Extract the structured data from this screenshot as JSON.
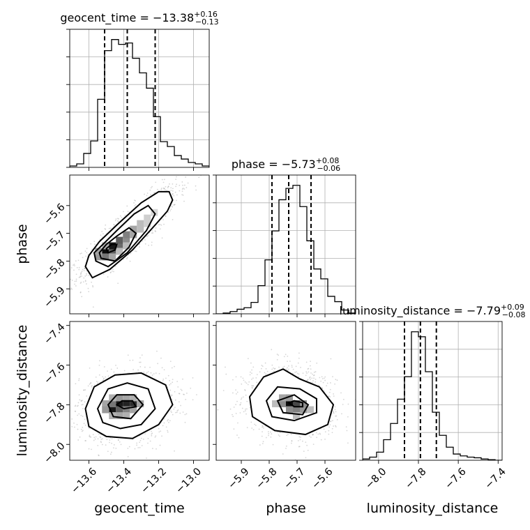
{
  "chart_data": {
    "type": "corner",
    "parameters": [
      {
        "key": "geocent_time",
        "label": "geocent_time",
        "title": {
          "name": "geocent_time",
          "median": "−13.38",
          "plus": "+0.16",
          "minus": "−0.13"
        },
        "range": [
          -13.71,
          -12.91
        ],
        "ticks": [
          -13.6,
          -13.4,
          -13.2,
          -13.0
        ],
        "tick_labels": [
          "−13.6",
          "−13.4",
          "−13.2",
          "−13.0"
        ],
        "quantiles": [
          -13.51,
          -13.38,
          -13.22
        ],
        "hist": {
          "edges": [
            -13.71,
            -13.67,
            -13.63,
            -13.59,
            -13.55,
            -13.51,
            -13.47,
            -13.43,
            -13.39,
            -13.35,
            -13.31,
            -13.27,
            -13.23,
            -13.19,
            -13.15,
            -13.11,
            -13.07,
            -13.03,
            -12.99,
            -12.95,
            -12.91
          ],
          "counts": [
            2,
            5,
            20,
            38,
            98,
            168,
            184,
            177,
            179,
            157,
            136,
            114,
            73,
            37,
            30,
            17,
            12,
            7,
            5,
            2
          ]
        }
      },
      {
        "key": "phase",
        "label": "phase",
        "title": {
          "name": "phase",
          "median": "−5.73",
          "plus": "+0.08",
          "minus": "−0.06"
        },
        "range": [
          -5.99,
          -5.49
        ],
        "ticks": [
          -5.9,
          -5.8,
          -5.7,
          -5.6
        ],
        "tick_labels": [
          "−5.9",
          "−5.8",
          "−5.7",
          "−5.6"
        ],
        "quantiles": [
          -5.79,
          -5.73,
          -5.65
        ],
        "hist": {
          "edges": [
            -5.99,
            -5.965,
            -5.94,
            -5.915,
            -5.89,
            -5.865,
            -5.84,
            -5.815,
            -5.79,
            -5.765,
            -5.74,
            -5.715,
            -5.69,
            -5.665,
            -5.64,
            -5.615,
            -5.59,
            -5.565,
            -5.54,
            -5.515,
            -5.49
          ],
          "counts": [
            0,
            1,
            3,
            6,
            8,
            15,
            37,
            71,
            109,
            150,
            165,
            169,
            141,
            96,
            59,
            46,
            23,
            16,
            5,
            1
          ]
        }
      },
      {
        "key": "luminosity_distance",
        "label": "luminosity_distance",
        "title": {
          "name": "luminosity_distance",
          "median": "−7.79",
          "plus": "+0.09",
          "minus": "−0.08"
        },
        "range": [
          -8.08,
          -7.38
        ],
        "ticks": [
          -8.0,
          -7.8,
          -7.6,
          -7.4
        ],
        "tick_labels": [
          "−8.0",
          "−7.8",
          "−7.6",
          "−7.4"
        ],
        "quantiles": [
          -7.87,
          -7.79,
          -7.71
        ],
        "hist": {
          "edges": [
            -8.08,
            -8.045,
            -8.01,
            -7.975,
            -7.94,
            -7.905,
            -7.87,
            -7.835,
            -7.8,
            -7.765,
            -7.73,
            -7.695,
            -7.66,
            -7.625,
            -7.59,
            -7.555,
            -7.52,
            -7.485,
            -7.45,
            -7.415,
            -7.38
          ],
          "counts": [
            2,
            5,
            13,
            33,
            59,
            98,
            134,
            206,
            198,
            142,
            77,
            40,
            21,
            10,
            7,
            5,
            4,
            2,
            1,
            0
          ]
        }
      }
    ],
    "pairs": [
      {
        "x": "geocent_time",
        "y": "phase",
        "contours": [
          [
            [
              -13.62,
              -5.82
            ],
            [
              -13.58,
              -5.86
            ],
            [
              -13.48,
              -5.83
            ],
            [
              -13.35,
              -5.76
            ],
            [
              -13.22,
              -5.67
            ],
            [
              -13.15,
              -5.62
            ],
            [
              -13.12,
              -5.58
            ],
            [
              -13.14,
              -5.55
            ],
            [
              -13.2,
              -5.55
            ],
            [
              -13.3,
              -5.59
            ],
            [
              -13.44,
              -5.67
            ],
            [
              -13.54,
              -5.73
            ],
            [
              -13.6,
              -5.78
            ]
          ],
          [
            [
              -13.56,
              -5.8
            ],
            [
              -13.49,
              -5.82
            ],
            [
              -13.38,
              -5.77
            ],
            [
              -13.27,
              -5.69
            ],
            [
              -13.22,
              -5.63
            ],
            [
              -13.26,
              -5.6
            ],
            [
              -13.34,
              -5.63
            ],
            [
              -13.44,
              -5.69
            ],
            [
              -13.52,
              -5.74
            ],
            [
              -13.57,
              -5.77
            ]
          ],
          [
            [
              -13.53,
              -5.79
            ],
            [
              -13.45,
              -5.8
            ],
            [
              -13.37,
              -5.75
            ],
            [
              -13.33,
              -5.7
            ],
            [
              -13.37,
              -5.68
            ],
            [
              -13.44,
              -5.71
            ],
            [
              -13.5,
              -5.74
            ],
            [
              -13.54,
              -5.77
            ]
          ],
          [
            [
              -13.49,
              -5.77
            ],
            [
              -13.45,
              -5.76
            ],
            [
              -13.44,
              -5.74
            ],
            [
              -13.47,
              -5.74
            ],
            [
              -13.5,
              -5.755
            ]
          ]
        ],
        "density_cells": [
          {
            "x": -13.505,
            "y": -5.765,
            "v": 0.95
          },
          {
            "x": -13.465,
            "y": -5.765,
            "v": 0.6
          },
          {
            "x": -13.465,
            "y": -5.745,
            "v": 0.9
          },
          {
            "x": -13.425,
            "y": -5.745,
            "v": 0.55
          },
          {
            "x": -13.425,
            "y": -5.725,
            "v": 0.6
          },
          {
            "x": -13.385,
            "y": -5.725,
            "v": 0.4
          },
          {
            "x": -13.385,
            "y": -5.705,
            "v": 0.45
          },
          {
            "x": -13.345,
            "y": -5.705,
            "v": 0.3
          },
          {
            "x": -13.345,
            "y": -5.685,
            "v": 0.3
          },
          {
            "x": -13.305,
            "y": -5.685,
            "v": 0.2
          },
          {
            "x": -13.305,
            "y": -5.665,
            "v": 0.2
          },
          {
            "x": -13.265,
            "y": -5.665,
            "v": 0.12
          },
          {
            "x": -13.265,
            "y": -5.645,
            "v": 0.12
          },
          {
            "x": -13.225,
            "y": -5.625,
            "v": 0.08
          },
          {
            "x": -13.545,
            "y": -5.785,
            "v": 0.35
          },
          {
            "x": -13.505,
            "y": -5.785,
            "v": 0.5
          },
          {
            "x": -13.465,
            "y": -5.785,
            "v": 0.3
          },
          {
            "x": -13.545,
            "y": -5.765,
            "v": 0.3
          },
          {
            "x": -13.425,
            "y": -5.765,
            "v": 0.2
          },
          {
            "x": -13.385,
            "y": -5.745,
            "v": 0.2
          },
          {
            "x": -13.505,
            "y": -5.745,
            "v": 0.25
          }
        ]
      },
      {
        "x": "geocent_time",
        "y": "luminosity_distance",
        "contours": [
          [
            [
              -13.62,
              -7.82
            ],
            [
              -13.6,
              -7.91
            ],
            [
              -13.5,
              -7.96
            ],
            [
              -13.35,
              -7.97
            ],
            [
              -13.2,
              -7.9
            ],
            [
              -13.12,
              -7.8
            ],
            [
              -13.16,
              -7.7
            ],
            [
              -13.3,
              -7.64
            ],
            [
              -13.45,
              -7.65
            ],
            [
              -13.57,
              -7.71
            ]
          ],
          [
            [
              -13.55,
              -7.82
            ],
            [
              -13.52,
              -7.89
            ],
            [
              -13.42,
              -7.92
            ],
            [
              -13.3,
              -7.9
            ],
            [
              -13.22,
              -7.82
            ],
            [
              -13.26,
              -7.72
            ],
            [
              -13.38,
              -7.69
            ],
            [
              -13.49,
              -7.72
            ]
          ],
          [
            [
              -13.49,
              -7.8
            ],
            [
              -13.46,
              -7.86
            ],
            [
              -13.36,
              -7.87
            ],
            [
              -13.29,
              -7.8
            ],
            [
              -13.34,
              -7.75
            ],
            [
              -13.44,
              -7.75
            ]
          ],
          [
            [
              -13.44,
              -7.8
            ],
            [
              -13.4,
              -7.82
            ],
            [
              -13.33,
              -7.81
            ],
            [
              -13.35,
              -7.78
            ],
            [
              -13.41,
              -7.78
            ]
          ]
        ],
        "density_cells": [
          {
            "x": -13.425,
            "y": -7.795,
            "v": 0.9
          },
          {
            "x": -13.385,
            "y": -7.795,
            "v": 0.85
          },
          {
            "x": -13.345,
            "y": -7.795,
            "v": 0.8
          },
          {
            "x": -13.465,
            "y": -7.825,
            "v": 0.9
          },
          {
            "x": -13.425,
            "y": -7.825,
            "v": 0.6
          },
          {
            "x": -13.465,
            "y": -7.795,
            "v": 0.5
          },
          {
            "x": -13.505,
            "y": -7.795,
            "v": 0.3
          },
          {
            "x": -13.505,
            "y": -7.825,
            "v": 0.35
          },
          {
            "x": -13.385,
            "y": -7.825,
            "v": 0.45
          },
          {
            "x": -13.345,
            "y": -7.825,
            "v": 0.3
          },
          {
            "x": -13.305,
            "y": -7.795,
            "v": 0.3
          },
          {
            "x": -13.425,
            "y": -7.765,
            "v": 0.35
          },
          {
            "x": -13.385,
            "y": -7.765,
            "v": 0.3
          },
          {
            "x": -13.465,
            "y": -7.765,
            "v": 0.25
          },
          {
            "x": -13.345,
            "y": -7.765,
            "v": 0.25
          },
          {
            "x": -13.425,
            "y": -7.855,
            "v": 0.3
          },
          {
            "x": -13.385,
            "y": -7.855,
            "v": 0.25
          },
          {
            "x": -13.465,
            "y": -7.855,
            "v": 0.25
          }
        ]
      },
      {
        "x": "phase",
        "y": "luminosity_distance",
        "contours": [
          [
            [
              -5.87,
              -7.76
            ],
            [
              -5.86,
              -7.86
            ],
            [
              -5.78,
              -7.93
            ],
            [
              -5.67,
              -7.95
            ],
            [
              -5.59,
              -7.9
            ],
            [
              -5.57,
              -7.8
            ],
            [
              -5.62,
              -7.71
            ],
            [
              -5.69,
              -7.67
            ],
            [
              -5.75,
              -7.62
            ],
            [
              -5.82,
              -7.66
            ]
          ],
          [
            [
              -5.81,
              -7.78
            ],
            [
              -5.79,
              -7.86
            ],
            [
              -5.71,
              -7.88
            ],
            [
              -5.63,
              -7.84
            ],
            [
              -5.63,
              -7.77
            ],
            [
              -5.69,
              -7.72
            ],
            [
              -5.77,
              -7.71
            ]
          ],
          [
            [
              -5.77,
              -7.78
            ],
            [
              -5.75,
              -7.84
            ],
            [
              -5.68,
              -7.85
            ],
            [
              -5.66,
              -7.8
            ],
            [
              -5.71,
              -7.75
            ]
          ],
          [
            [
              -5.73,
              -7.79
            ],
            [
              -5.71,
              -7.81
            ],
            [
              -5.68,
              -7.81
            ],
            [
              -5.68,
              -7.79
            ],
            [
              -5.71,
              -7.78
            ]
          ]
        ],
        "density_cells": [
          {
            "x": -5.7275,
            "y": -7.795,
            "v": 0.95
          },
          {
            "x": -5.7025,
            "y": -7.795,
            "v": 0.7
          },
          {
            "x": -5.7525,
            "y": -7.795,
            "v": 0.4
          },
          {
            "x": -5.7275,
            "y": -7.825,
            "v": 0.4
          },
          {
            "x": -5.7025,
            "y": -7.825,
            "v": 0.45
          },
          {
            "x": -5.6775,
            "y": -7.825,
            "v": 0.35
          },
          {
            "x": -5.6775,
            "y": -7.795,
            "v": 0.4
          },
          {
            "x": -5.7525,
            "y": -7.765,
            "v": 0.3
          },
          {
            "x": -5.7275,
            "y": -7.765,
            "v": 0.35
          },
          {
            "x": -5.7775,
            "y": -7.795,
            "v": 0.2
          },
          {
            "x": -5.6525,
            "y": -7.825,
            "v": 0.2
          },
          {
            "x": -5.7025,
            "y": -7.855,
            "v": 0.2
          }
        ]
      }
    ],
    "grid": true
  }
}
